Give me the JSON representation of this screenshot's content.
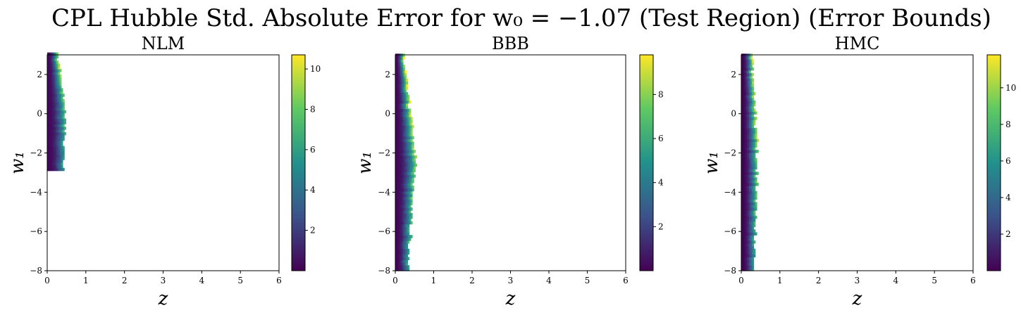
{
  "figure_title": "CPL Hubble Std. Absolute Error for w₀ = −1.07 (Test Region) (Error Bounds)",
  "colormap": [
    "#440154",
    "#3b528b",
    "#21918c",
    "#5ec962",
    "#fde725"
  ],
  "chart_data": [
    {
      "type": "heatmap",
      "title": "NLM",
      "xlabel": "z",
      "ylabel": "w₁",
      "xlim": [
        0,
        6
      ],
      "ylim": [
        -8,
        3
      ],
      "xticks": [
        "0",
        "1",
        "2",
        "3",
        "4",
        "5",
        "6"
      ],
      "yticks": [
        "−8",
        "−6",
        "−4",
        "−2",
        "0",
        "2"
      ],
      "colorbar_range": [
        0,
        10.7
      ],
      "colorbar_ticks": [
        "2",
        "4",
        "6",
        "8",
        "10"
      ],
      "region": {
        "w_min": -2.9,
        "w_max": 3.0,
        "z_left": 0.0,
        "z_right_top": 0.25,
        "z_right_mid": 0.45,
        "z_right_bottom": 0.4
      },
      "value_profile": {
        "low_edge": 0.3,
        "high_edge": 9.0
      }
    },
    {
      "type": "heatmap",
      "title": "BBB",
      "xlabel": "z",
      "ylabel": "w₁",
      "xlim": [
        0,
        6
      ],
      "ylim": [
        -8,
        3
      ],
      "xticks": [
        "0",
        "1",
        "2",
        "3",
        "4",
        "5",
        "6"
      ],
      "yticks": [
        "−8",
        "−6",
        "−4",
        "−2",
        "0",
        "2"
      ],
      "colorbar_range": [
        0,
        9.8
      ],
      "colorbar_ticks": [
        "2",
        "4",
        "6",
        "8"
      ],
      "region": {
        "w_min": -8.0,
        "w_max": 3.0,
        "z_left": 0.0,
        "z_right_top": 0.2,
        "z_right_mid": 0.5,
        "z_right_bottom": 0.3
      },
      "value_profile": {
        "low_edge": 0.2,
        "high_edge": 9.5
      }
    },
    {
      "type": "heatmap",
      "title": "HMC",
      "xlabel": "z",
      "ylabel": "w₁",
      "xlim": [
        0,
        6
      ],
      "ylim": [
        -8,
        3
      ],
      "xticks": [
        "0",
        "1",
        "2",
        "3",
        "4",
        "5",
        "6"
      ],
      "yticks": [
        "−8",
        "−6",
        "−4",
        "−2",
        "0",
        "2"
      ],
      "colorbar_range": [
        0,
        11.8
      ],
      "colorbar_ticks": [
        "2",
        "4",
        "6",
        "8",
        "10"
      ],
      "region": {
        "w_min": -8.0,
        "w_max": 3.0,
        "z_left": 0.0,
        "z_right_top": 0.25,
        "z_right_mid": 0.4,
        "z_right_bottom": 0.3
      },
      "value_profile": {
        "low_edge": 0.1,
        "high_edge": 11.0
      }
    }
  ]
}
